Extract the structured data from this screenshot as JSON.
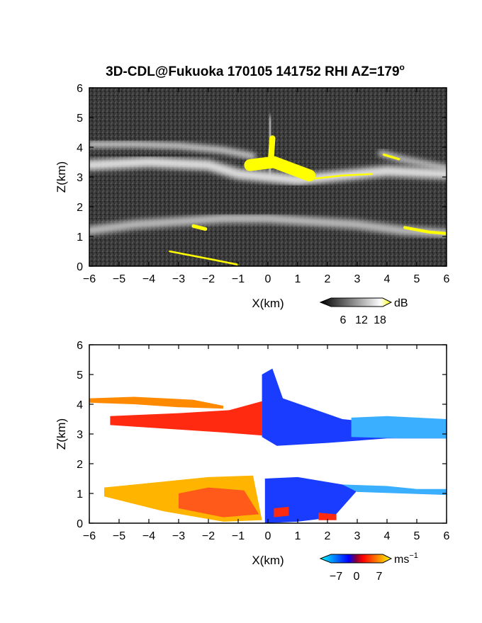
{
  "chart_data": [
    {
      "type": "heatmap",
      "title": "3D-CDL@Fukuoka 170105 141752 RHI AZ=179",
      "title_superscript": "o",
      "xlabel": "X(km)",
      "ylabel": "Z(km)",
      "xlim": [
        -6,
        6
      ],
      "ylim": [
        0,
        6
      ],
      "x_ticks": [
        -6,
        -5,
        -4,
        -3,
        -2,
        -1,
        0,
        1,
        2,
        3,
        4,
        5,
        6
      ],
      "y_ticks": [
        0,
        1,
        2,
        3,
        4,
        5,
        6
      ],
      "background": "#3a3a3a",
      "colorbar": {
        "unit": "dB",
        "ticks": [
          6,
          12,
          18
        ],
        "colors": [
          "#000000",
          "#ffffff",
          "#ffff00"
        ]
      },
      "features": [
        {
          "kind": "band",
          "points": [
            [
              -6,
              3.4
            ],
            [
              -4,
              3.5
            ],
            [
              -2,
              3.4
            ],
            [
              -1,
              3.1
            ],
            [
              0,
              3.0
            ],
            [
              1,
              2.9
            ],
            [
              2,
              3.0
            ],
            [
              3,
              3.1
            ],
            [
              4,
              3.2
            ],
            [
              6,
              3.1
            ]
          ],
          "thickness": 0.35,
          "intensity": 0.75
        },
        {
          "kind": "band",
          "points": [
            [
              -6,
              4.1
            ],
            [
              -4.5,
              4.1
            ],
            [
              -3,
              4.05
            ],
            [
              -1.5,
              3.9
            ],
            [
              -0.5,
              3.7
            ]
          ],
          "thickness": 0.2,
          "intensity": 0.7
        },
        {
          "kind": "band",
          "points": [
            [
              3.8,
              3.8
            ],
            [
              4.5,
              3.6
            ],
            [
              5.5,
              3.4
            ],
            [
              6,
              3.3
            ]
          ],
          "thickness": 0.2,
          "intensity": 0.6
        },
        {
          "kind": "band",
          "points": [
            [
              -6,
              1.2
            ],
            [
              -4.5,
              1.4
            ],
            [
              -3,
              1.5
            ],
            [
              -1.5,
              1.6
            ],
            [
              0,
              1.6
            ],
            [
              1.5,
              1.5
            ],
            [
              3,
              1.4
            ],
            [
              4.5,
              1.2
            ],
            [
              6,
              1.1
            ]
          ],
          "thickness": 0.3,
          "intensity": 0.5
        },
        {
          "kind": "band",
          "points": [
            [
              0.05,
              3.2
            ],
            [
              0.1,
              4.2
            ],
            [
              0.1,
              5.0
            ]
          ],
          "thickness": 0.15,
          "intensity": 0.95
        },
        {
          "kind": "highlight",
          "points": [
            [
              -0.6,
              3.4
            ],
            [
              0.2,
              3.5
            ],
            [
              1.4,
              3.05
            ]
          ],
          "thickness": 0.4
        },
        {
          "kind": "highlight",
          "points": [
            [
              0.1,
              3.6
            ],
            [
              0.15,
              4.3
            ]
          ],
          "thickness": 0.2
        },
        {
          "kind": "highlight",
          "points": [
            [
              1.6,
              2.95
            ],
            [
              2.5,
              3.05
            ],
            [
              3.5,
              3.1
            ]
          ],
          "thickness": 0.06
        },
        {
          "kind": "highlight",
          "points": [
            [
              3.9,
              3.75
            ],
            [
              4.4,
              3.6
            ]
          ],
          "thickness": 0.08
        },
        {
          "kind": "highlight",
          "points": [
            [
              -2.5,
              1.35
            ],
            [
              -2.1,
              1.25
            ]
          ],
          "thickness": 0.12
        },
        {
          "kind": "highlight",
          "points": [
            [
              4.6,
              1.3
            ],
            [
              5.4,
              1.15
            ],
            [
              6,
              1.1
            ]
          ],
          "thickness": 0.1
        },
        {
          "kind": "highlight",
          "points": [
            [
              -3.3,
              0.5
            ],
            [
              -2,
              0.25
            ],
            [
              -1,
              0.05
            ]
          ],
          "thickness": 0.06
        }
      ]
    },
    {
      "type": "heatmap",
      "xlabel": "X(km)",
      "ylabel": "Z(km)",
      "xlim": [
        -6,
        6
      ],
      "ylim": [
        0,
        6
      ],
      "x_ticks": [
        -6,
        -5,
        -4,
        -3,
        -2,
        -1,
        0,
        1,
        2,
        3,
        4,
        5,
        6
      ],
      "y_ticks": [
        0,
        1,
        2,
        3,
        4,
        5,
        6
      ],
      "background": "#ffffff",
      "colorbar": {
        "unit": "ms",
        "unit_superscript": "−1",
        "ticks": [
          "−7",
          "0",
          "7"
        ],
        "colors": [
          "#00ffff",
          "#0000ff",
          "#ff0000",
          "#ffff00"
        ]
      },
      "regions": [
        {
          "color": "#ff2a10",
          "points": [
            [
              -5.3,
              3.6
            ],
            [
              -3,
              3.7
            ],
            [
              -1.3,
              3.8
            ],
            [
              -0.2,
              4.1
            ],
            [
              -0.2,
              2.95
            ],
            [
              -1.5,
              3.05
            ],
            [
              -3,
              3.15
            ],
            [
              -5.3,
              3.3
            ]
          ]
        },
        {
          "color": "#ff8a00",
          "points": [
            [
              -6,
              4.2
            ],
            [
              -4.5,
              4.25
            ],
            [
              -2.5,
              4.15
            ],
            [
              -1.5,
              3.95
            ],
            [
              -1.5,
              3.85
            ],
            [
              -3,
              3.9
            ],
            [
              -4.5,
              4.0
            ],
            [
              -6,
              4.05
            ]
          ]
        },
        {
          "color": "#1a3cff",
          "points": [
            [
              -0.2,
              5.0
            ],
            [
              0.15,
              5.2
            ],
            [
              0.5,
              4.2
            ],
            [
              2.5,
              3.5
            ],
            [
              4.5,
              3.3
            ],
            [
              6,
              3.35
            ],
            [
              6,
              2.85
            ],
            [
              4,
              2.85
            ],
            [
              2,
              2.7
            ],
            [
              0.3,
              2.6
            ],
            [
              -0.2,
              2.9
            ]
          ]
        },
        {
          "color": "#3aaeff",
          "points": [
            [
              2.8,
              3.55
            ],
            [
              4,
              3.6
            ],
            [
              6,
              3.5
            ],
            [
              6,
              2.85
            ],
            [
              4.5,
              2.85
            ],
            [
              2.8,
              2.9
            ]
          ]
        },
        {
          "color": "#ffb400",
          "points": [
            [
              -5.5,
              1.2
            ],
            [
              -3.5,
              1.4
            ],
            [
              -2,
              1.55
            ],
            [
              -0.5,
              1.6
            ],
            [
              -0.2,
              0.1
            ],
            [
              -1.5,
              0.05
            ],
            [
              -3.5,
              0.4
            ],
            [
              -5.5,
              0.9
            ]
          ]
        },
        {
          "color": "#ff5a1a",
          "points": [
            [
              -3,
              1.0
            ],
            [
              -2,
              1.2
            ],
            [
              -0.8,
              1.1
            ],
            [
              -0.3,
              0.3
            ],
            [
              -1.5,
              0.2
            ],
            [
              -3,
              0.5
            ]
          ]
        },
        {
          "color": "#1a3cff",
          "points": [
            [
              -0.1,
              1.5
            ],
            [
              1,
              1.55
            ],
            [
              2.5,
              1.3
            ],
            [
              3,
              1.1
            ],
            [
              2.2,
              0.2
            ],
            [
              1,
              0.05
            ],
            [
              -0.1,
              0.0
            ]
          ]
        },
        {
          "color": "#3aaeff",
          "points": [
            [
              2.5,
              1.3
            ],
            [
              4,
              1.25
            ],
            [
              5,
              1.15
            ],
            [
              6,
              1.15
            ],
            [
              6,
              0.95
            ],
            [
              4.5,
              1.0
            ],
            [
              3,
              1.05
            ]
          ]
        },
        {
          "color": "#ff2a10",
          "points": [
            [
              0.2,
              0.5
            ],
            [
              0.7,
              0.55
            ],
            [
              0.7,
              0.25
            ],
            [
              0.2,
              0.2
            ]
          ]
        },
        {
          "color": "#ff2a10",
          "points": [
            [
              1.7,
              0.35
            ],
            [
              2.3,
              0.3
            ],
            [
              2.3,
              0.1
            ],
            [
              1.7,
              0.1
            ]
          ]
        }
      ]
    }
  ]
}
